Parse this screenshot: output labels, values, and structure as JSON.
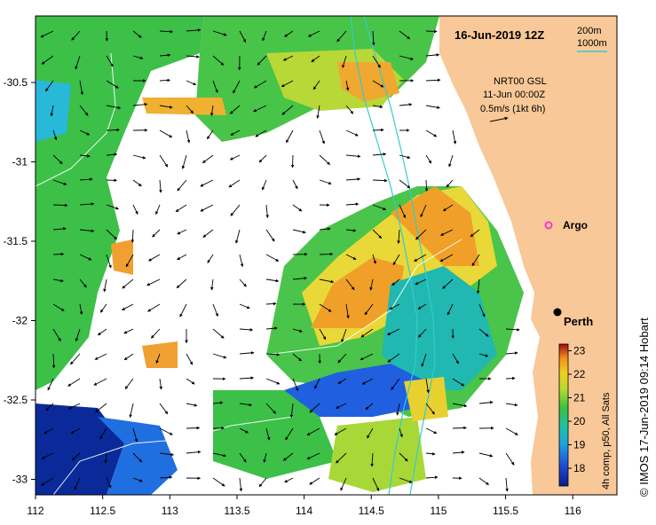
{
  "title": "16-Jun-2019 12Z",
  "scale": {
    "d200": "200m",
    "d1000": "1000m"
  },
  "current_info": {
    "line1": "NRT00 GSL",
    "line2": "11-Jun 00:00Z",
    "line3": "0.5m/s (1kt 6h)"
  },
  "places": {
    "argo": "Argo",
    "perth": "Perth"
  },
  "colorbar": {
    "label": "4h comp, p50, All Sats",
    "ticks": [
      "18",
      "19",
      "20",
      "21",
      "22",
      "23"
    ]
  },
  "credit": "© IMOS 17-Jun-2019 09:14 Hobart",
  "axes": {
    "x_ticks": [
      "112",
      "112.5",
      "113",
      "113.5",
      "114",
      "114.5",
      "115",
      "115.5",
      "116"
    ],
    "y_ticks": [
      "-30.5",
      "-31",
      "-31.5",
      "-32",
      "-32.5",
      "-33"
    ]
  },
  "colors": {
    "land": "#F8C898",
    "contour_200": "#33CCCC",
    "contour_1000": "#33CCCC",
    "argo": "#FF33CC",
    "perth": "#000000"
  }
}
